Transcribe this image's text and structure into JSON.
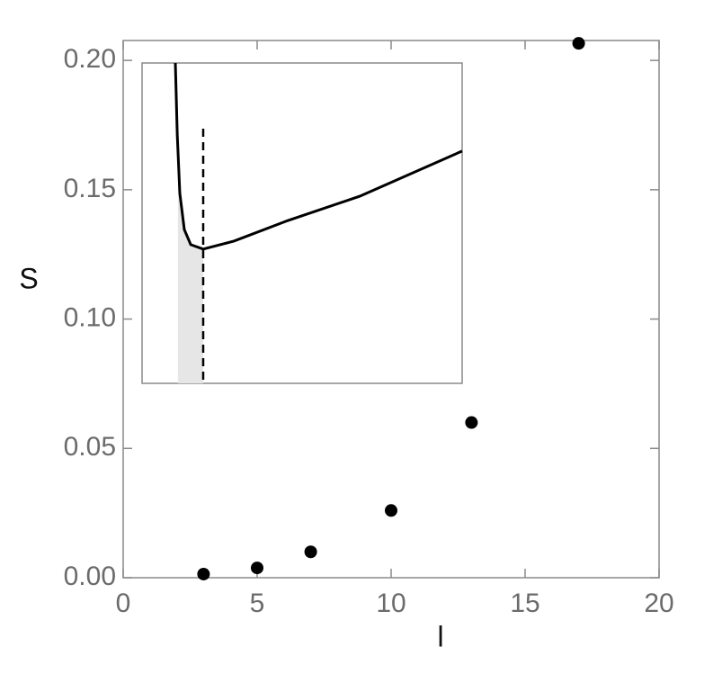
{
  "chart_data": [
    {
      "type": "scatter",
      "x_label": "l",
      "y_label": "S",
      "x": [
        3,
        5,
        7,
        10,
        13,
        17
      ],
      "values": [
        0.0014,
        0.0038,
        0.01,
        0.026,
        0.06,
        0.2066
      ],
      "color": "#000000",
      "xlim": [
        0,
        20
      ],
      "ylim": [
        0,
        0.2077
      ],
      "xticks": [
        0,
        5,
        10,
        15,
        20
      ],
      "yticks": [
        {
          "value": 0,
          "label": "0.00"
        },
        {
          "value": 0.05,
          "label": "0.05"
        },
        {
          "value": 0.1,
          "label": "0.10"
        },
        {
          "value": 0.15,
          "label": "0.15"
        },
        {
          "value": 0.2,
          "label": "0.20"
        }
      ]
    },
    {
      "type": "line",
      "xlim": [
        0,
        1
      ],
      "ylim": [
        0,
        1
      ],
      "series": [
        {
          "color": "#000000",
          "x": [
            0.104,
            0.11,
            0.118,
            0.132,
            0.152,
            0.191,
            0.287,
            0.455,
            0.68,
            1.0
          ],
          "values": [
            1.0,
            0.775,
            0.593,
            0.48,
            0.433,
            0.419,
            0.444,
            0.508,
            0.584,
            0.725
          ]
        }
      ],
      "vline_x": 0.191,
      "vline_top": 0.795,
      "shade": [
        0.112,
        0.191
      ],
      "shade_color": "#e6e6e6"
    }
  ]
}
